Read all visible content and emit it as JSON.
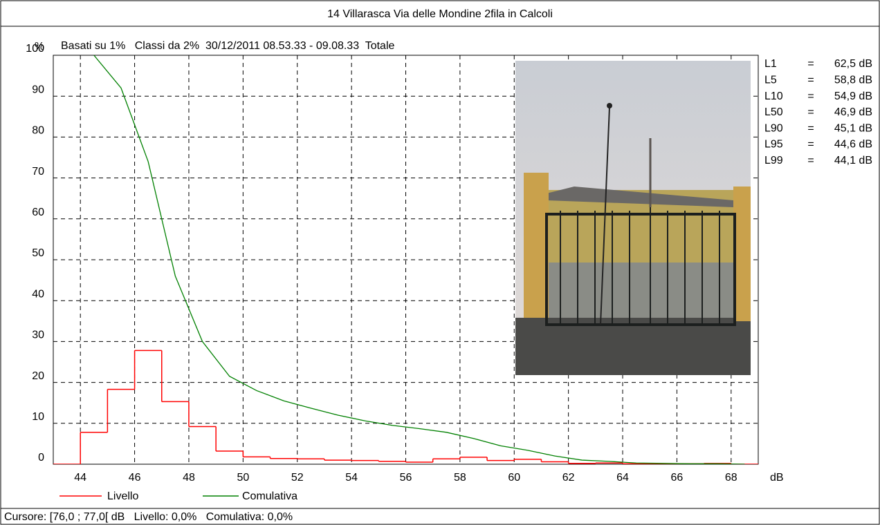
{
  "chart_data": {
    "type": "histogram",
    "title": "14 Villarasca Via delle Mondine 2fila in Calcoli",
    "subtitle": "Basati su 1%   Classi da 2%  30/12/2011 08.53.33 - 09.08.33  Totale",
    "y_label": "%",
    "x_label": "dB",
    "xlim": [
      43,
      69
    ],
    "xticks": [
      44,
      46,
      48,
      50,
      52,
      54,
      56,
      58,
      60,
      62,
      64,
      66,
      68
    ],
    "ylim": [
      0,
      100
    ],
    "yticks": [
      0,
      10,
      20,
      30,
      40,
      50,
      60,
      70,
      80,
      90,
      100
    ],
    "grid": true,
    "series": [
      {
        "name": "Livello",
        "type": "histogram",
        "color": "#ff0000",
        "bins": [
          43,
          44,
          45,
          46,
          47,
          48,
          49,
          50,
          51,
          52,
          53,
          54,
          55,
          56,
          57,
          58,
          59,
          60,
          61,
          62,
          63,
          64,
          65,
          66,
          67,
          68,
          69
        ],
        "values": [
          0,
          7.8,
          18.3,
          27.8,
          15.3,
          9.2,
          3.2,
          1.8,
          1.4,
          1.3,
          1.0,
          0.9,
          0.7,
          0.5,
          1.3,
          1.7,
          0.9,
          1.2,
          0.6,
          0.2,
          0.3,
          0.1,
          0.1,
          0.1,
          0.2,
          0
        ]
      },
      {
        "name": "Comulativa",
        "type": "line",
        "color": "#008000",
        "x": [
          44.5,
          45.5,
          46.5,
          47.5,
          48.5,
          49.5,
          50.5,
          51.5,
          52.5,
          53.5,
          54.5,
          55.5,
          56.5,
          57.5,
          58.5,
          59.5,
          60.5,
          61.5,
          62.5,
          63.5,
          64.5,
          65.5,
          66.5,
          67.5,
          68.5
        ],
        "values": [
          100,
          92,
          74,
          46,
          30,
          21.5,
          18,
          15.5,
          13.7,
          12,
          10.6,
          9.5,
          8.7,
          7.8,
          6.3,
          4.5,
          3.4,
          2,
          1,
          0.7,
          0.3,
          0.2,
          0.1,
          0.1,
          0
        ]
      }
    ],
    "stats_separator": "=",
    "stats": [
      {
        "label": "L1",
        "value": "62,5 dB"
      },
      {
        "label": "L5",
        "value": "58,8 dB"
      },
      {
        "label": "L10",
        "value": "54,9 dB"
      },
      {
        "label": "L50",
        "value": "46,9 dB"
      },
      {
        "label": "L90",
        "value": "45,1 dB"
      },
      {
        "label": "L95",
        "value": "44,6 dB"
      },
      {
        "label": "L99",
        "value": "44,1 dB"
      }
    ],
    "footer": "Cursore: [76,0 ; 77,0[ dB   Livello: 0,0%   Comulativa: 0,0%"
  }
}
